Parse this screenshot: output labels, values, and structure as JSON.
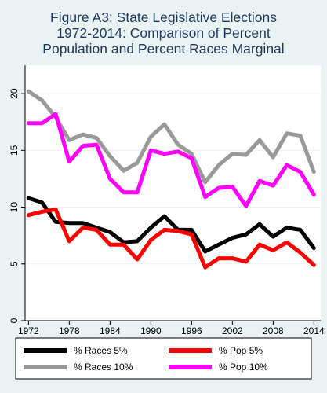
{
  "chart_data": {
    "type": "line",
    "title_lines": [
      "Figure A3: State Legislative Elections",
      "1972-2014: Comparison of Percent",
      "Population and Percent Races Marginal"
    ],
    "xlabel": "",
    "ylabel": "",
    "x": [
      1972,
      1974,
      1976,
      1978,
      1980,
      1982,
      1984,
      1986,
      1988,
      1990,
      1992,
      1994,
      1996,
      1998,
      2000,
      2002,
      2004,
      2006,
      2008,
      2010,
      2012,
      2014
    ],
    "x_ticks": [
      "1972",
      "1978",
      "1984",
      "1990",
      "1996",
      "2002",
      "2008",
      "2014"
    ],
    "x_tick_values": [
      1972,
      1978,
      1984,
      1990,
      1996,
      2002,
      2008,
      2014
    ],
    "y_ticks": [
      "0",
      "5",
      "10",
      "15",
      "20"
    ],
    "y_tick_values": [
      0,
      5,
      10,
      15,
      20
    ],
    "xlim": [
      1971.5,
      2015
    ],
    "ylim": [
      0,
      22.5
    ],
    "grid": "horizontal",
    "legend_position": "bottom",
    "series": [
      {
        "name": "% Races 5%",
        "color": "#000000",
        "values": [
          10.8,
          10.4,
          8.7,
          8.6,
          8.6,
          8.2,
          7.8,
          6.9,
          7.0,
          8.2,
          9.2,
          8.0,
          8.0,
          6.1,
          6.7,
          7.3,
          7.6,
          8.5,
          7.4,
          8.2,
          8.0,
          6.4
        ]
      },
      {
        "name": "% Pop 5%",
        "color": "#ff0000",
        "values": [
          9.3,
          9.6,
          9.8,
          7.0,
          8.2,
          8.0,
          6.7,
          6.7,
          5.4,
          7.1,
          8.0,
          7.9,
          7.6,
          4.7,
          5.5,
          5.5,
          5.2,
          6.7,
          6.2,
          6.9,
          6.0,
          4.9
        ]
      },
      {
        "name": "% Races 10%",
        "color": "#999999",
        "values": [
          20.2,
          19.4,
          17.9,
          15.9,
          16.4,
          16.1,
          14.5,
          13.2,
          13.9,
          16.2,
          17.3,
          15.5,
          14.7,
          12.2,
          13.7,
          14.7,
          14.6,
          15.9,
          14.4,
          16.5,
          16.3,
          13.1
        ]
      },
      {
        "name": "% Pop 10%",
        "color": "#ff00ff",
        "values": [
          17.4,
          17.4,
          18.2,
          14.0,
          15.4,
          15.5,
          12.5,
          11.3,
          11.3,
          15.0,
          14.7,
          14.9,
          14.3,
          10.9,
          11.7,
          11.8,
          10.1,
          12.3,
          11.9,
          13.7,
          13.1,
          11.1
        ]
      }
    ]
  }
}
